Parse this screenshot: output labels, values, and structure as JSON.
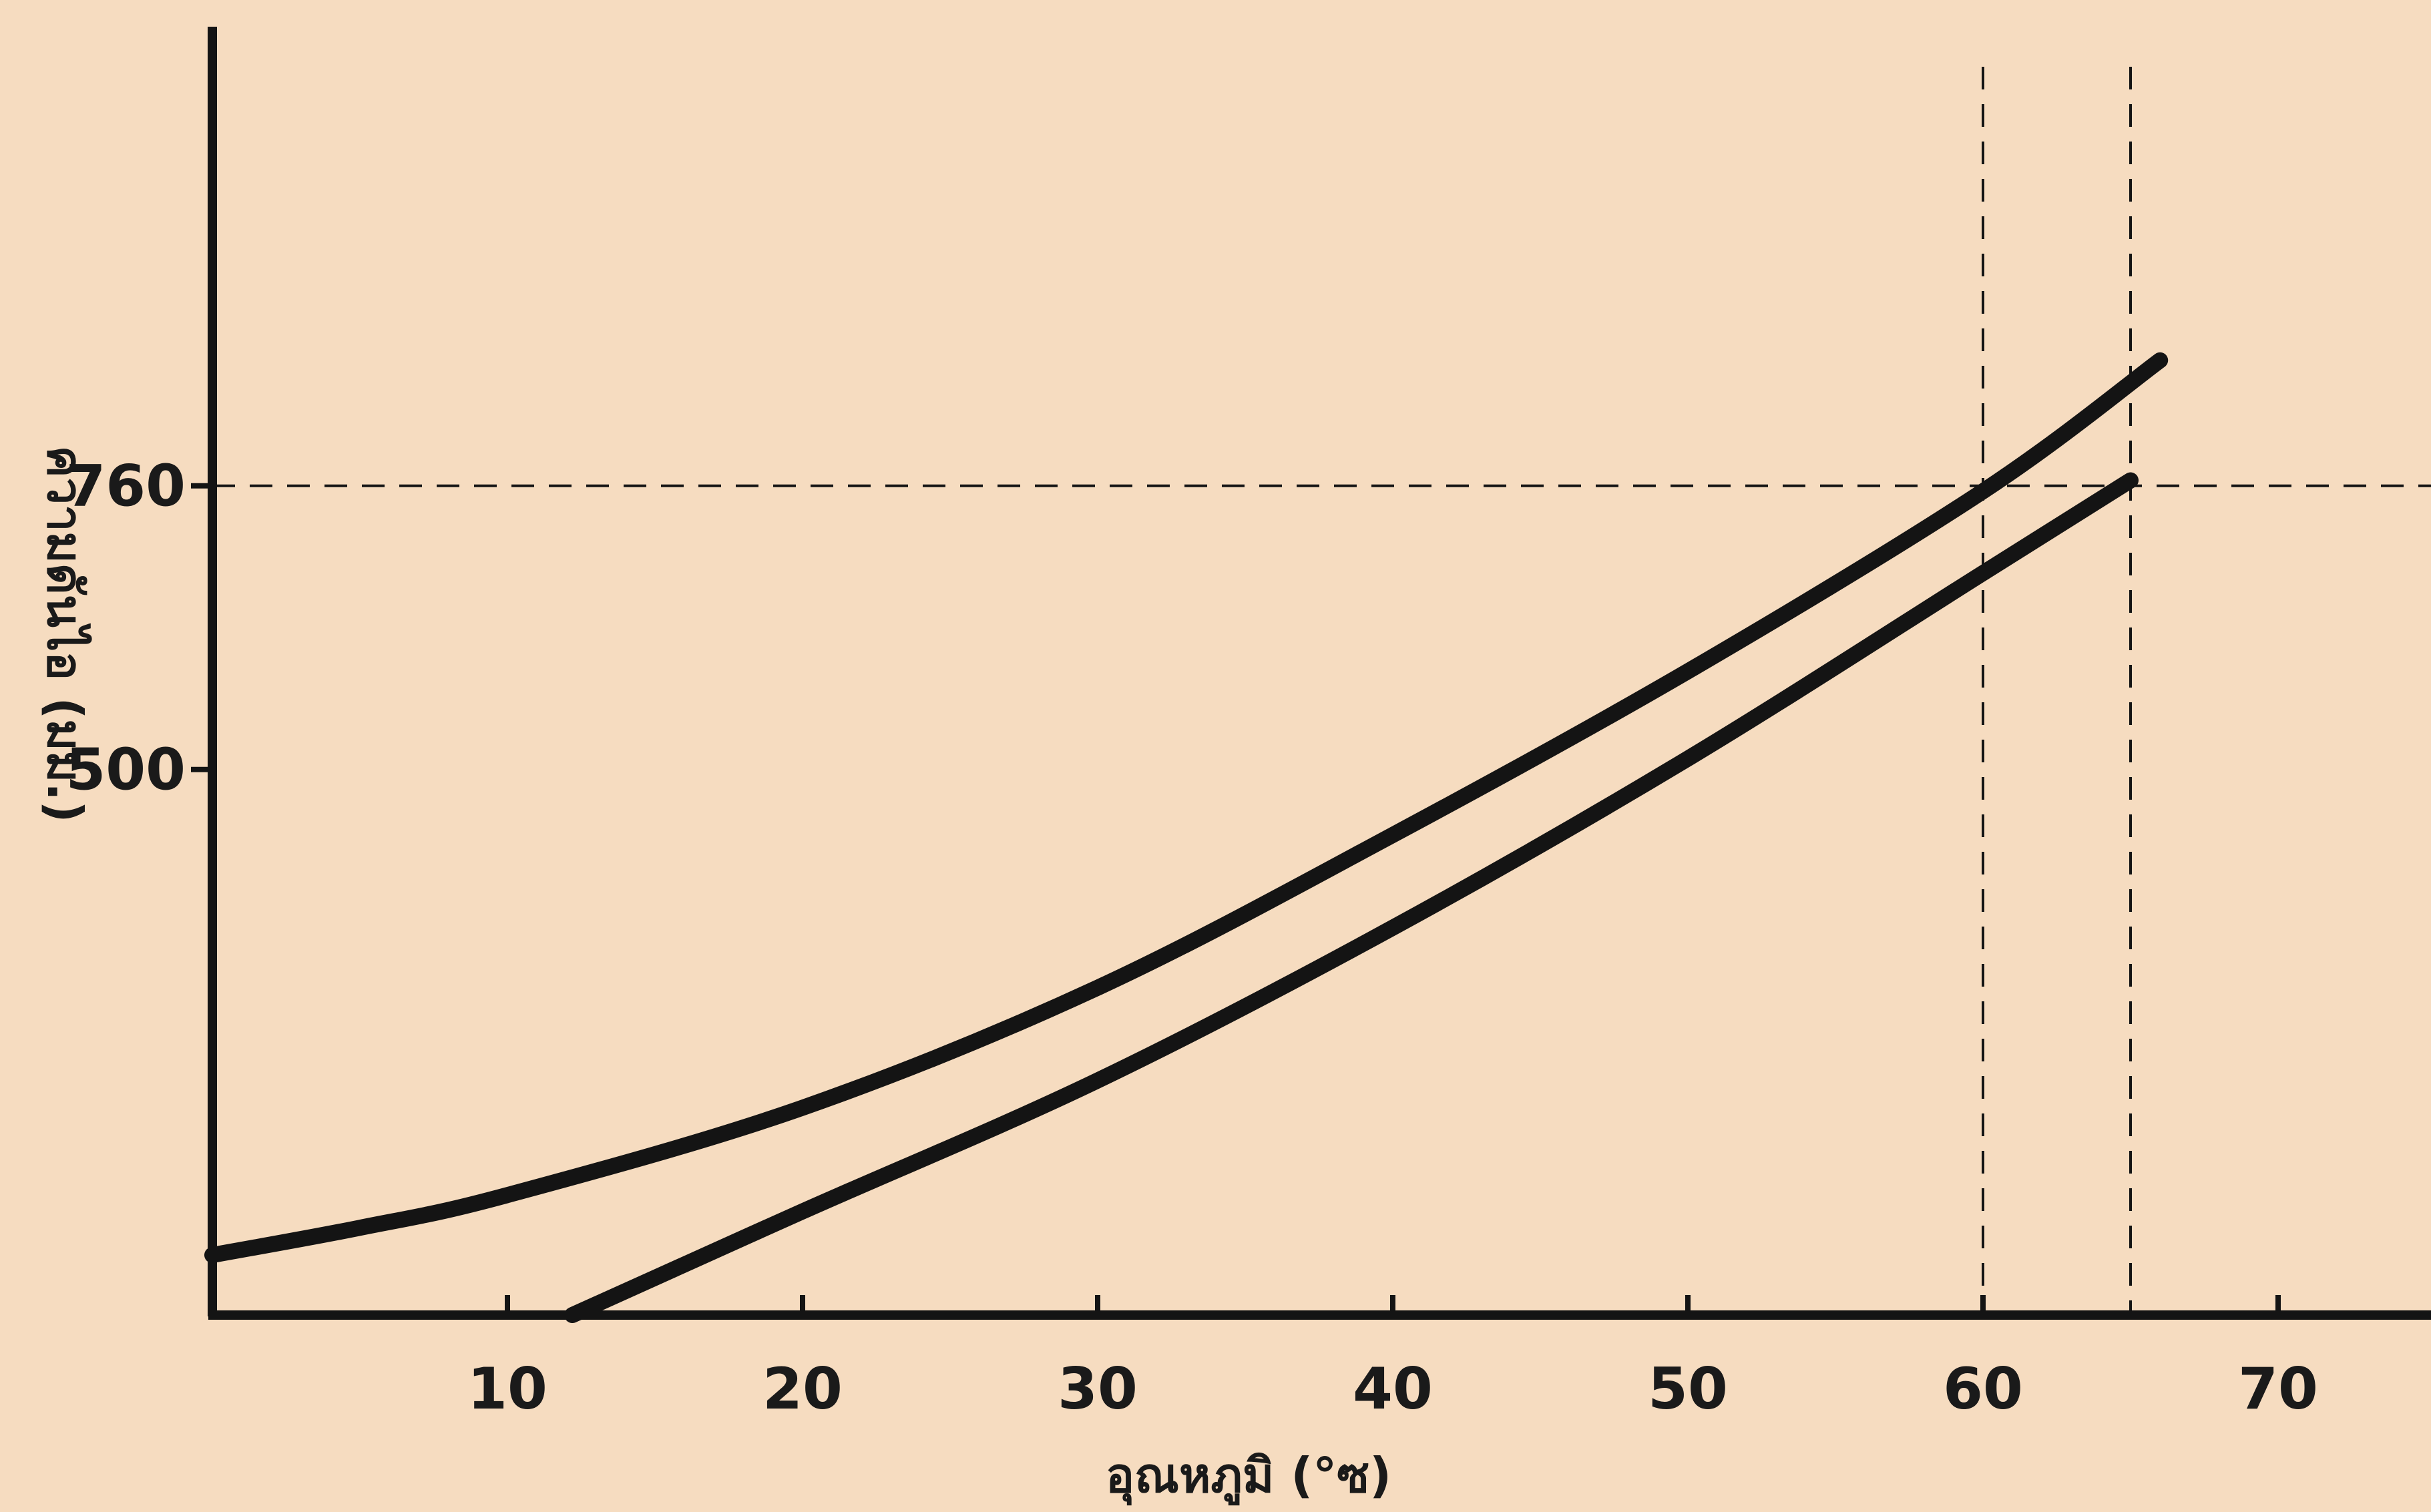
{
  "chart_data": {
    "type": "line",
    "xlabel": "อุณหภูมิ (°ซ)",
    "ylabel": "ความดันไอ (มม.)",
    "x_ticks": [
      "10",
      "20",
      "30",
      "40",
      "50",
      "60",
      "70"
    ],
    "y_ticks": [
      "500",
      "760"
    ],
    "xlim": [
      0,
      75
    ],
    "ylim": [
      0,
      880
    ],
    "grid": false,
    "reference_lines": [
      {
        "axis": "y",
        "value": 760,
        "style": "dashed"
      },
      {
        "axis": "x",
        "value": 60,
        "style": "dashed"
      },
      {
        "axis": "x",
        "value": 65,
        "style": "dashed"
      }
    ],
    "series": [
      {
        "points": [
          [
            0,
            55
          ],
          [
            5,
            80
          ],
          [
            10,
            110
          ],
          [
            20,
            190
          ],
          [
            30,
            300
          ],
          [
            40,
            440
          ],
          [
            50,
            590
          ],
          [
            60,
            755
          ],
          [
            66,
            875
          ]
        ]
      },
      {
        "points": [
          [
            12.2,
            0
          ],
          [
            20,
            95
          ],
          [
            30,
            215
          ],
          [
            40,
            355
          ],
          [
            50,
            510
          ],
          [
            60,
            680
          ],
          [
            65,
            765
          ]
        ]
      }
    ],
    "line_color": "#141414",
    "background_color": "#f6dcc0"
  }
}
